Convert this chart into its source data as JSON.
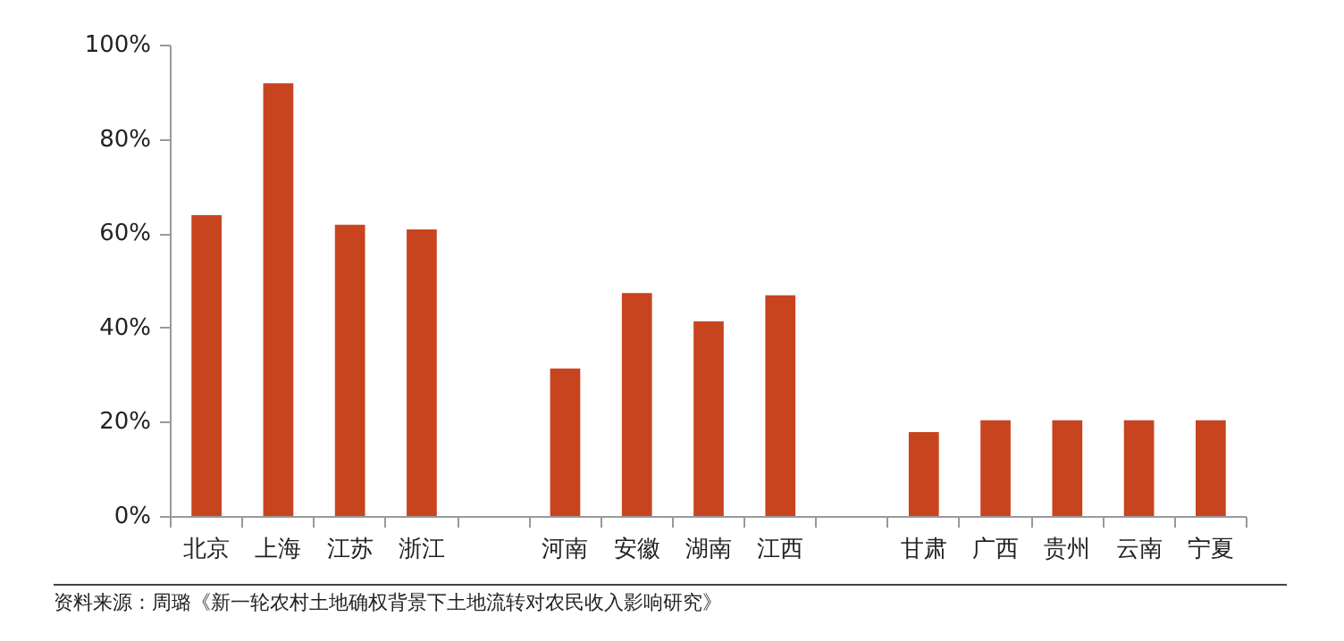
{
  "chart_data": {
    "type": "bar",
    "categories": [
      "北京",
      "上海",
      "江苏",
      "浙江",
      null,
      "河南",
      "安徽",
      "湖南",
      "江西",
      null,
      "甘肃",
      "广西",
      "贵州",
      "云南",
      "宁夏"
    ],
    "values": [
      64,
      92,
      62,
      61,
      null,
      31.5,
      47.5,
      41.5,
      47,
      null,
      18,
      20.5,
      20.5,
      20.5,
      20.5
    ],
    "color": "#c8441f",
    "ylim": [
      0,
      100
    ],
    "yticks": [
      {
        "value": 0,
        "label": "0%"
      },
      {
        "value": 20,
        "label": "20%"
      },
      {
        "value": 40,
        "label": "40%"
      },
      {
        "value": 60,
        "label": "60%"
      },
      {
        "value": 80,
        "label": "80%"
      },
      {
        "value": 100,
        "label": "100%"
      }
    ],
    "grid": false,
    "annotations": [
      "资料来源：周璐《新一轮农村土地确权背景下土地流转对农民收入影响研究》"
    ]
  }
}
